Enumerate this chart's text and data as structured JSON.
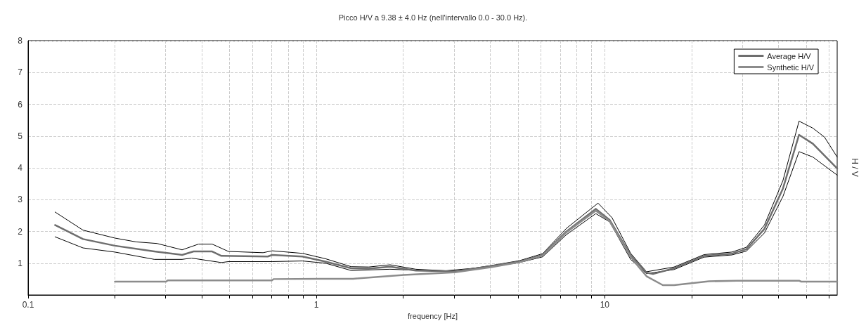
{
  "chart_data": {
    "type": "line",
    "title": "Picco H/V a 9.38 ± 4.0 Hz (nell'intervallo 0.0 - 30.0 Hz).",
    "xlabel": "frequency [Hz]",
    "ylabel": "H / V",
    "log": "x",
    "grid": true,
    "legend": "top right",
    "marker": "none",
    "line_style": "solid",
    "xlim": [
      0.1,
      64
    ],
    "xticks": [
      0.1,
      {
        "value": 0.2,
        "label": null
      },
      {
        "value": 0.3,
        "label": null
      },
      {
        "value": 0.4,
        "label": null
      },
      {
        "value": 0.5,
        "label": null
      },
      {
        "value": 0.6,
        "label": null
      },
      {
        "value": 0.7,
        "label": null
      },
      {
        "value": 0.8,
        "label": null
      },
      {
        "value": 0.9,
        "label": null
      },
      1,
      {
        "value": 2,
        "label": null
      },
      {
        "value": 3,
        "label": null
      },
      {
        "value": 4,
        "label": null
      },
      {
        "value": 5,
        "label": null
      },
      {
        "value": 6,
        "label": null
      },
      {
        "value": 7,
        "label": null
      },
      {
        "value": 8,
        "label": null
      },
      {
        "value": 9,
        "label": null
      },
      10,
      {
        "value": 20,
        "label": null
      },
      {
        "value": 30,
        "label": null
      },
      {
        "value": 40,
        "label": null
      },
      {
        "value": 50,
        "label": null
      },
      {
        "value": 60,
        "label": null
      }
    ],
    "ylim": [
      0,
      8
    ],
    "yticks": [
      {
        "value": 0,
        "label": null
      },
      1,
      2,
      3,
      4,
      5,
      6,
      7,
      8
    ],
    "series": [
      {
        "name": null,
        "color": "#000000",
        "x": [
          0.124,
          0.155,
          0.2,
          0.237,
          0.28,
          0.342,
          0.39,
          0.435,
          0.495,
          0.653,
          0.702,
          0.894,
          1.075,
          1.32,
          1.52,
          1.8,
          2.21,
          3.02,
          4.06,
          5.06,
          6.09,
          7.37,
          9.48,
          10.6,
          12.3,
          13.96,
          17.4,
          22.1,
          27.6,
          31,
          35.8,
          41.5,
          47.2,
          52.7,
          57.8,
          64
        ],
        "values": [
          2.61,
          2.04,
          1.79,
          1.67,
          1.62,
          1.42,
          1.6,
          1.6,
          1.37,
          1.33,
          1.39,
          1.31,
          1.14,
          0.89,
          0.88,
          0.95,
          0.81,
          0.75,
          0.93,
          1.08,
          1.3,
          2.1,
          2.89,
          2.43,
          1.31,
          0.73,
          0.88,
          1.27,
          1.35,
          1.5,
          2.2,
          3.6,
          5.47,
          5.25,
          4.97,
          4.34
        ]
      },
      {
        "name": null,
        "color": "#000000",
        "x": [
          0.124,
          0.155,
          0.2,
          0.274,
          0.342,
          0.369,
          0.468,
          0.495,
          0.702,
          0.894,
          1.075,
          1.32,
          1.8,
          2.7,
          4.06,
          5.06,
          6.09,
          7.37,
          9.31,
          10.4,
          12.3,
          13.96,
          17.4,
          22.1,
          27.6,
          31,
          35.8,
          41.5,
          47.2,
          52.7,
          64
        ],
        "values": [
          1.83,
          1.48,
          1.35,
          1.12,
          1.12,
          1.16,
          1.02,
          1.05,
          1.05,
          1.07,
          1,
          0.77,
          0.81,
          0.75,
          0.89,
          1.02,
          1.2,
          1.9,
          2.56,
          2.3,
          1.12,
          0.67,
          0.8,
          1.19,
          1.26,
          1.38,
          1.95,
          3.1,
          4.51,
          4.34,
          3.77
        ]
      },
      {
        "name": "Average H/V",
        "color": "#6e6e6e",
        "x": [
          0.124,
          0.155,
          0.2,
          0.274,
          0.342,
          0.375,
          0.435,
          0.468,
          0.678,
          0.702,
          0.894,
          1.075,
          1.32,
          1.52,
          1.8,
          2.21,
          2.7,
          3.02,
          4.06,
          5.06,
          6.09,
          7.37,
          9.31,
          10.4,
          12.3,
          13.96,
          14.7,
          17.4,
          22.1,
          27.6,
          31,
          35.8,
          41.5,
          47.2,
          52.7,
          64
        ],
        "values": [
          2.2,
          1.76,
          1.55,
          1.37,
          1.26,
          1.37,
          1.37,
          1.23,
          1.21,
          1.26,
          1.21,
          1.05,
          0.84,
          0.83,
          0.89,
          0.77,
          0.75,
          0.74,
          0.91,
          1.05,
          1.26,
          2,
          2.71,
          2.36,
          1.25,
          0.7,
          0.66,
          0.84,
          1.23,
          1.3,
          1.44,
          2.08,
          3.35,
          5.04,
          4.76,
          3.98
        ]
      },
      {
        "name": "Synthetic H/V",
        "color": "#8c8c8c",
        "x": [
          0.2,
          0.301,
          0.305,
          0.702,
          0.71,
          1.034,
          1.34,
          2.01,
          3.02,
          4.06,
          5.06,
          6.09,
          7.37,
          9.31,
          10.4,
          12.3,
          13.2,
          13.96,
          15.9,
          17.4,
          23,
          28.7,
          47.2,
          48,
          64
        ],
        "values": [
          0.42,
          0.42,
          0.46,
          0.46,
          0.5,
          0.51,
          0.51,
          0.63,
          0.71,
          0.88,
          1.03,
          1.24,
          1.97,
          2.65,
          2.32,
          1.2,
          0.85,
          0.59,
          0.31,
          0.31,
          0.43,
          0.45,
          0.45,
          0.42,
          0.42
        ]
      }
    ]
  }
}
